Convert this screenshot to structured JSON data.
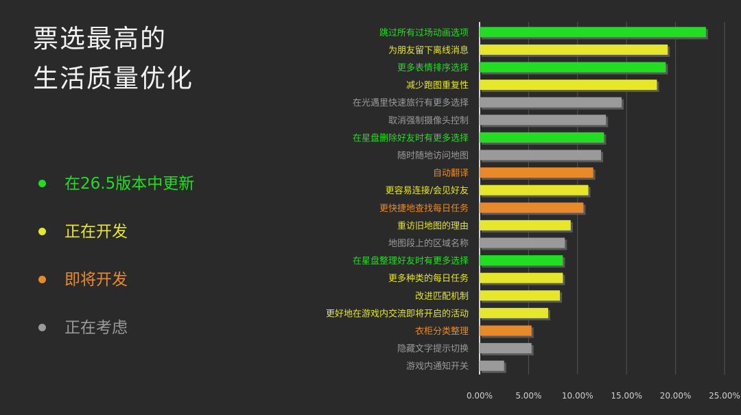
{
  "title": {
    "line1": "票选最高的",
    "line2": "生活质量优化"
  },
  "legend": [
    {
      "label": "在26.5版本中更新",
      "color": "#22dd22"
    },
    {
      "label": "正在开发",
      "color": "#e6e62a"
    },
    {
      "label": "即将开发",
      "color": "#e88a2a"
    },
    {
      "label": "正在考虑",
      "color": "#9a9a9a"
    }
  ],
  "colors": {
    "green": "#22dd22",
    "yellow": "#e6e62a",
    "orange": "#e88a2a",
    "gray": "#9a9a9a"
  },
  "chart_data": {
    "type": "bar",
    "orientation": "horizontal",
    "xlim": [
      0,
      25
    ],
    "x_ticks": [
      "0.00%",
      "5.00%",
      "10.00%",
      "15.00%",
      "20.00%",
      "25.00%"
    ],
    "x_tick_values": [
      0,
      5,
      10,
      15,
      20,
      25
    ],
    "grid": true,
    "categories": [
      "跳过所有过场动画选项",
      "为朋友留下离线消息",
      "更多表情排序选择",
      "减少跑图重复性",
      "在光遇里快速旅行有更多选择",
      "取消强制摄像头控制",
      "在星盘删除好友时有更多选择",
      "随时随地访问地图",
      "自动翻译",
      "更容易连接/会见好友",
      "更快捷地查找每日任务",
      "重访旧地图的理由",
      "地图段上的区域名称",
      "在星盘整理好友时有更多选择",
      "更多种类的每日任务",
      "改进匹配机制",
      "更好地在游戏内交流即将开启的活动",
      "衣柜分类整理",
      "隐藏文字提示切换",
      "游戏内通知开关"
    ],
    "values": [
      23.1,
      19.2,
      19.0,
      18.1,
      14.5,
      12.9,
      12.7,
      12.4,
      11.6,
      11.1,
      10.6,
      9.3,
      8.7,
      8.5,
      8.5,
      8.2,
      7.0,
      5.3,
      5.3,
      2.5
    ],
    "status": [
      "green",
      "yellow",
      "green",
      "yellow",
      "gray",
      "gray",
      "green",
      "gray",
      "orange",
      "yellow",
      "orange",
      "yellow",
      "gray",
      "green",
      "yellow",
      "yellow",
      "yellow",
      "orange",
      "gray",
      "gray"
    ]
  }
}
